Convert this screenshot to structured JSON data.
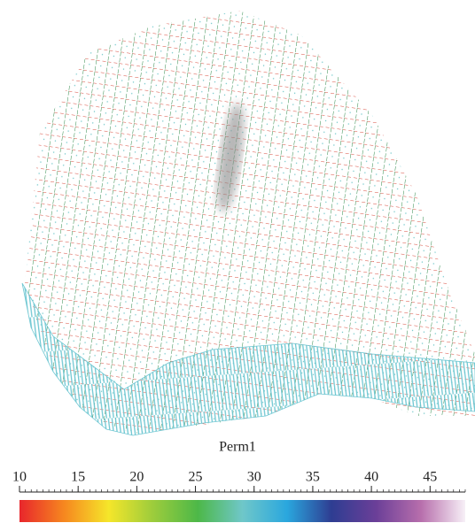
{
  "colorbar": {
    "label": "Perm1",
    "range": [
      10,
      48
    ],
    "ticks": [
      10,
      15,
      20,
      25,
      30,
      35,
      40,
      45
    ],
    "colors": [
      "#e8262c",
      "#f6871f",
      "#f5e62a",
      "#9ccc3c",
      "#4db848",
      "#6fc7c9",
      "#2aa7de",
      "#2e3d92",
      "#6b3f98",
      "#b76eac",
      "#f7f0f7"
    ]
  }
}
